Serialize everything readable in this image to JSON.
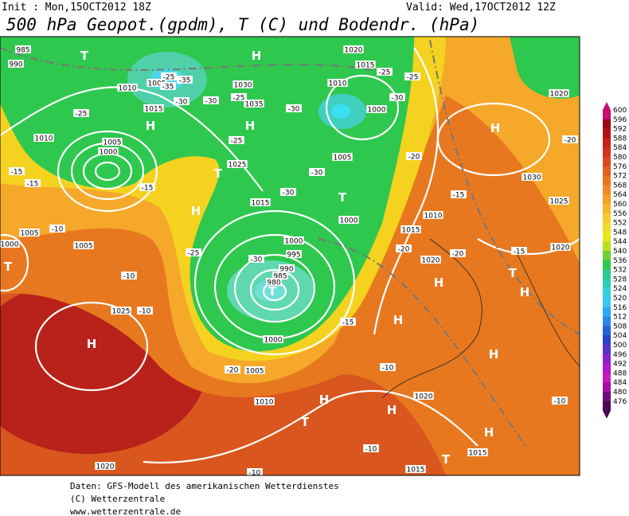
{
  "header": {
    "init": "Init : Mon,15OCT2012 18Z",
    "valid": "Valid: Wed,17OCT2012 12Z",
    "title": "500 hPa Geopot.(gpdm), T (C) und Bodendr. (hPa)"
  },
  "colorbar": {
    "labels": [
      600,
      596,
      592,
      588,
      584,
      580,
      576,
      572,
      568,
      564,
      560,
      556,
      552,
      548,
      544,
      540,
      536,
      532,
      528,
      524,
      520,
      516,
      512,
      508,
      504,
      500,
      496,
      492,
      488,
      484,
      480,
      476
    ]
  },
  "map": {
    "labels": [
      "T",
      "H",
      "H",
      "H",
      "T",
      "H",
      "T",
      "T",
      "H",
      "H",
      "H",
      "H",
      "T",
      "H",
      "H",
      "H",
      "T",
      "H",
      "H",
      "T",
      "T",
      "985",
      "990",
      "1005",
      "1010",
      "1015",
      "1030",
      "1035",
      "1020",
      "1015",
      "1010",
      "1000",
      "1020",
      "1030",
      "1025",
      "1020",
      "1010",
      "1005",
      "1000",
      "1025",
      "1015",
      "1005",
      "1000",
      "1010",
      "1015",
      "1020",
      "1000",
      "995",
      "990",
      "985",
      "980",
      "1000",
      "1005",
      "1010",
      "1025",
      "1000",
      "1005",
      "1005",
      "1020",
      "1015",
      "1015",
      "1020",
      "-25",
      "-35",
      "-35",
      "-30",
      "-25",
      "-30",
      "-25",
      "-30",
      "-25",
      "-30",
      "-25",
      "-20",
      "-15",
      "-20",
      "-20",
      "-15",
      "-25",
      "-15",
      "-15",
      "-15",
      "-10",
      "-10",
      "-10",
      "-25",
      "-30",
      "-30",
      "-30",
      "-15",
      "-10",
      "-10",
      "-10",
      "-10",
      "-20",
      "-20"
    ]
  },
  "footer": {
    "lines": [
      "Daten: GFS-Modell des amerikanischen Wetterdienstes",
      "(C) Wetterzentrale",
      "www.wetterzentrale.de"
    ]
  }
}
